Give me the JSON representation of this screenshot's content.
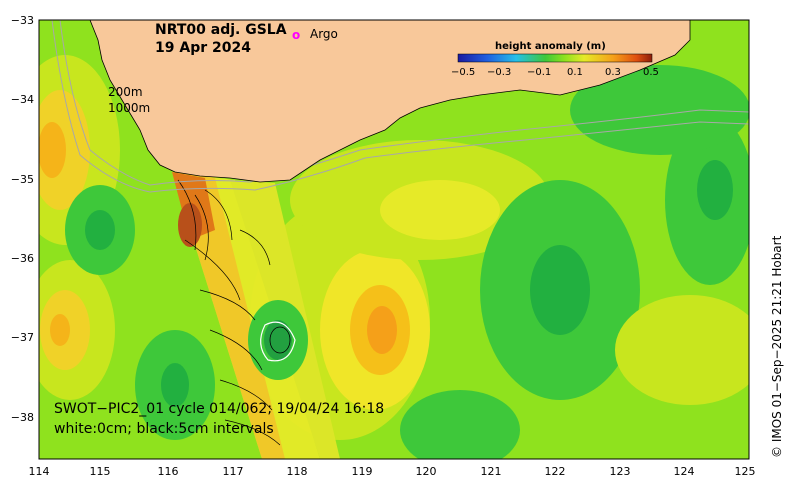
{
  "title": {
    "product": "NRT00 adj. GSLA",
    "date": "19 Apr 2024"
  },
  "legend": {
    "argo_symbol": "o",
    "argo_label": "Argo",
    "argo_color": "#ff00ff"
  },
  "isobaths": {
    "shallow": "200m",
    "deep": "1000m"
  },
  "colorbar": {
    "title": "height anomaly (m)",
    "ticks": [
      "−0.5",
      "−0.3",
      "−0.1",
      "0.1",
      "0.3",
      "0.5"
    ],
    "colors": [
      "#1a1aa0",
      "#1f5fe0",
      "#27a6f0",
      "#28d4c8",
      "#3ec83a",
      "#7ed321",
      "#c8e61e",
      "#f0e628",
      "#f5b419",
      "#f07814",
      "#d2320a",
      "#8c1e0a"
    ]
  },
  "swath": {
    "line1": "SWOT−PIC2_01 cycle 014/062; 19/04/24 16:18",
    "line2": "white:0cm; black:5cm intervals"
  },
  "axes": {
    "x_ticks": [
      "114",
      "115",
      "116",
      "117",
      "118",
      "119",
      "120",
      "121",
      "122",
      "123",
      "124",
      "125"
    ],
    "y_ticks": [
      "−33",
      "−34",
      "−35",
      "−36",
      "−37",
      "−38"
    ]
  },
  "credit": "© IMOS 01−Sep−2025 21:21 Hobart",
  "colors": {
    "land": "#f8c89a",
    "ocean_base": "#8fe21e",
    "isobath": "#a8a8a8"
  }
}
